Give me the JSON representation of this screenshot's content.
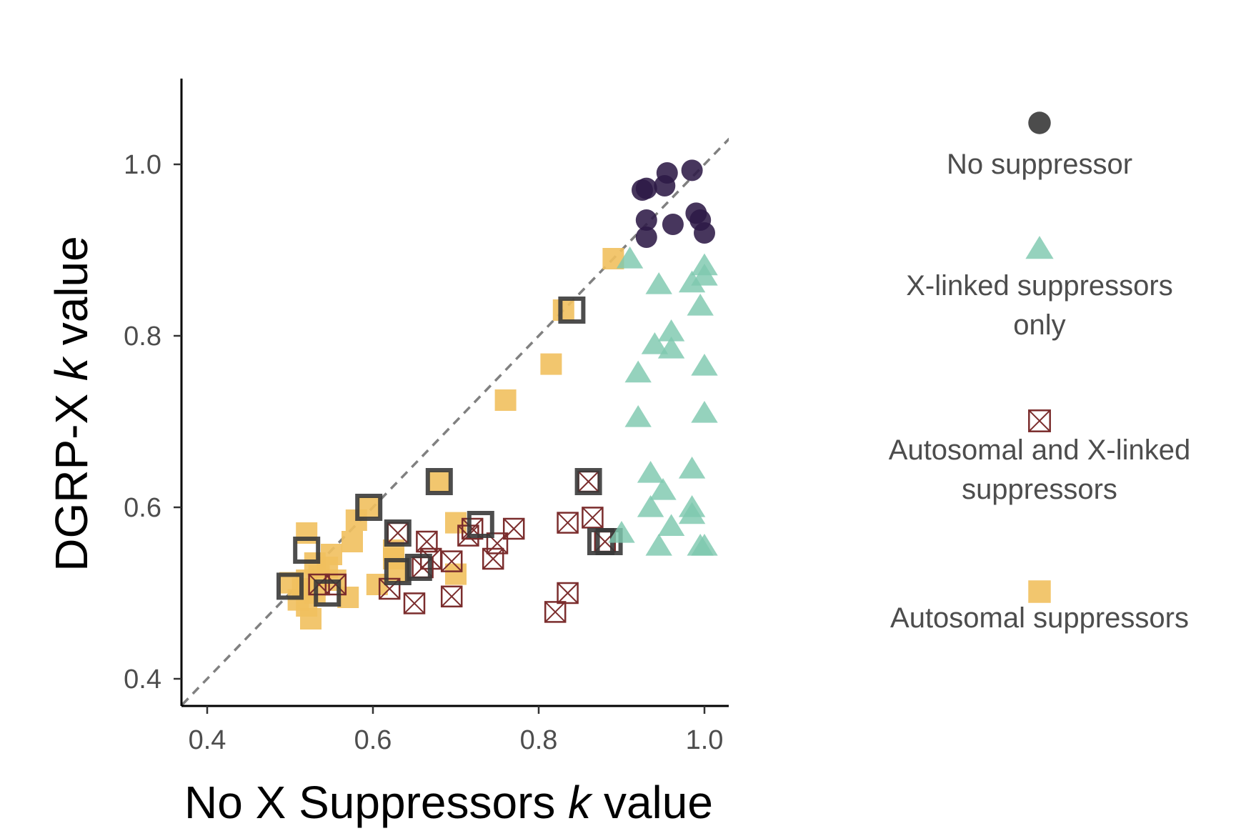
{
  "chart_data": {
    "type": "scatter",
    "xlabel": {
      "main": "No X Suppressors ",
      "italic": "k",
      "rest": " value"
    },
    "ylabel": {
      "main": "DGRP-X ",
      "italic": "k",
      "rest": " value"
    },
    "xlim": [
      0.37,
      1.03
    ],
    "ylim": [
      0.37,
      1.03
    ],
    "xticks": [
      "0.4",
      "0.6",
      "0.8",
      "1.0"
    ],
    "yticks": [
      "0.4",
      "0.6",
      "0.8",
      "1.0"
    ],
    "reference_line": "y = x (dashed)",
    "legend_position": "right",
    "series": [
      {
        "name": "No suppressor",
        "shape": "circle",
        "color": "#2e1a47",
        "legend_color": "#333333",
        "legend_lines": [
          "No suppressor"
        ],
        "points": [
          [
            0.925,
            0.97
          ],
          [
            0.93,
            0.972
          ],
          [
            0.952,
            0.975
          ],
          [
            0.955,
            0.99
          ],
          [
            0.985,
            0.993
          ],
          [
            0.93,
            0.935
          ],
          [
            0.962,
            0.93
          ],
          [
            0.99,
            0.943
          ],
          [
            0.995,
            0.935
          ],
          [
            1.0,
            0.92
          ],
          [
            0.93,
            0.915
          ]
        ]
      },
      {
        "name": "X-linked suppressors only",
        "shape": "triangle",
        "color": "#7ec8ae",
        "legend_color": "#7ec8ae",
        "legend_lines": [
          "X-linked suppressors",
          "only"
        ],
        "points": [
          [
            0.91,
            0.89
          ],
          [
            0.945,
            0.86
          ],
          [
            0.985,
            0.862
          ],
          [
            1.0,
            0.882
          ],
          [
            1.0,
            0.87
          ],
          [
            0.995,
            0.835
          ],
          [
            0.94,
            0.79
          ],
          [
            0.96,
            0.805
          ],
          [
            0.96,
            0.785
          ],
          [
            0.92,
            0.757
          ],
          [
            1.0,
            0.765
          ],
          [
            0.92,
            0.705
          ],
          [
            1.0,
            0.71
          ],
          [
            0.935,
            0.64
          ],
          [
            0.985,
            0.645
          ],
          [
            0.95,
            0.62
          ],
          [
            0.935,
            0.6
          ],
          [
            0.985,
            0.6
          ],
          [
            0.985,
            0.592
          ],
          [
            0.9,
            0.57
          ],
          [
            0.96,
            0.578
          ],
          [
            0.945,
            0.555
          ],
          [
            0.995,
            0.555
          ],
          [
            1.0,
            0.555
          ]
        ]
      },
      {
        "name": "Autosomal and X-linked suppressors",
        "shape": "boxed-x",
        "color": "#7b2d2d",
        "legend_color": "#7b2d2d",
        "legend_lines": [
          "Autosomal and X-linked",
          "suppressors"
        ],
        "points": [
          [
            0.63,
            0.57
          ],
          [
            0.665,
            0.56
          ],
          [
            0.67,
            0.54
          ],
          [
            0.66,
            0.53
          ],
          [
            0.695,
            0.537
          ],
          [
            0.715,
            0.567
          ],
          [
            0.72,
            0.575
          ],
          [
            0.745,
            0.54
          ],
          [
            0.75,
            0.558
          ],
          [
            0.77,
            0.575
          ],
          [
            0.835,
            0.582
          ],
          [
            0.865,
            0.588
          ],
          [
            0.86,
            0.63
          ],
          [
            0.88,
            0.56
          ],
          [
            0.62,
            0.505
          ],
          [
            0.65,
            0.488
          ],
          [
            0.695,
            0.496
          ],
          [
            0.835,
            0.5
          ],
          [
            0.82,
            0.478
          ],
          [
            0.555,
            0.51
          ],
          [
            0.535,
            0.51
          ]
        ]
      },
      {
        "name": "Autosomal suppressors",
        "shape": "square",
        "color": "#f1c05e",
        "legend_color": "#f1c05e",
        "legend_lines": [
          "Autosomal suppressors"
        ],
        "points": [
          [
            0.89,
            0.89
          ],
          [
            0.83,
            0.83
          ],
          [
            0.815,
            0.767
          ],
          [
            0.76,
            0.725
          ],
          [
            0.68,
            0.63
          ],
          [
            0.595,
            0.6
          ],
          [
            0.58,
            0.585
          ],
          [
            0.7,
            0.582
          ],
          [
            0.52,
            0.57
          ],
          [
            0.575,
            0.56
          ],
          [
            0.625,
            0.55
          ],
          [
            0.55,
            0.545
          ],
          [
            0.625,
            0.54
          ],
          [
            0.53,
            0.535
          ],
          [
            0.545,
            0.53
          ],
          [
            0.535,
            0.52
          ],
          [
            0.52,
            0.515
          ],
          [
            0.555,
            0.515
          ],
          [
            0.5,
            0.512
          ],
          [
            0.515,
            0.505
          ],
          [
            0.53,
            0.5
          ],
          [
            0.57,
            0.495
          ],
          [
            0.63,
            0.525
          ],
          [
            0.605,
            0.51
          ],
          [
            0.7,
            0.522
          ],
          [
            0.51,
            0.492
          ],
          [
            0.52,
            0.485
          ],
          [
            0.525,
            0.47
          ]
        ]
      },
      {
        "name": "",
        "shape": "outlined-square",
        "color": "#3a3a3a",
        "points": [
          [
            0.84,
            0.83
          ],
          [
            0.68,
            0.63
          ],
          [
            0.595,
            0.6
          ],
          [
            0.73,
            0.58
          ],
          [
            0.63,
            0.57
          ],
          [
            0.52,
            0.55
          ],
          [
            0.63,
            0.525
          ],
          [
            0.655,
            0.53
          ],
          [
            0.5,
            0.508
          ],
          [
            0.545,
            0.5
          ],
          [
            0.86,
            0.63
          ],
          [
            0.875,
            0.56
          ],
          [
            0.885,
            0.56
          ]
        ]
      }
    ]
  }
}
